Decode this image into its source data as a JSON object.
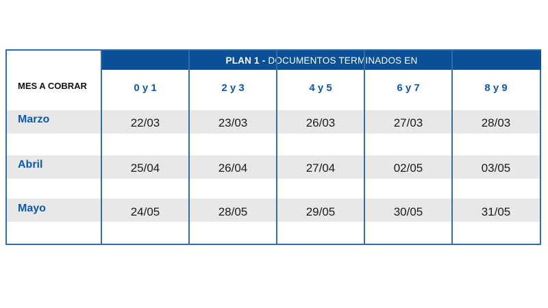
{
  "table": {
    "plan_title_strong": "PLAN 1 -",
    "plan_title_rest": "DOCUMENTOS TERMINADOS EN",
    "row_header_label": "MES A COBRAR",
    "columns": [
      "0 y 1",
      "2 y 3",
      "4 y 5",
      "6 y 7",
      "8 y 9"
    ],
    "rows": [
      {
        "month": "Marzo",
        "dates": [
          "22/03",
          "23/03",
          "26/03",
          "27/03",
          "28/03"
        ]
      },
      {
        "month": "Abril",
        "dates": [
          "25/04",
          "26/04",
          "27/04",
          "02/05",
          "03/05"
        ]
      },
      {
        "month": "Mayo",
        "dates": [
          "24/05",
          "28/05",
          "29/05",
          "30/05",
          "31/05"
        ]
      }
    ]
  },
  "colors": {
    "header_bg": "#0b4f96",
    "accent_text": "#0b5aa8",
    "border": "#2f6ca8",
    "band": "#e8e8e8"
  }
}
